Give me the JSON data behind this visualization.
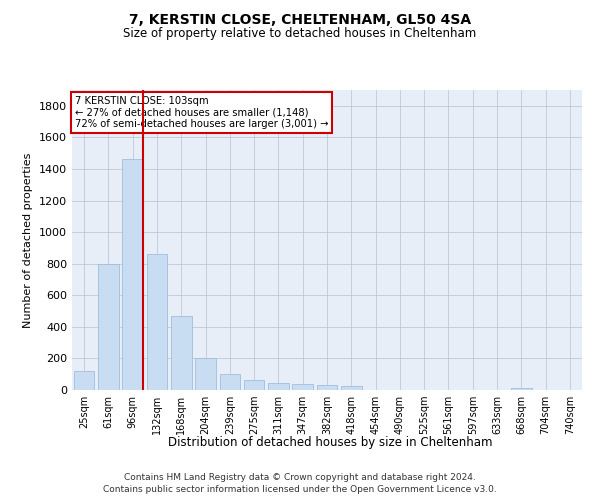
{
  "title": "7, KERSTIN CLOSE, CHELTENHAM, GL50 4SA",
  "subtitle": "Size of property relative to detached houses in Cheltenham",
  "xlabel": "Distribution of detached houses by size in Cheltenham",
  "ylabel": "Number of detached properties",
  "categories": [
    "25sqm",
    "61sqm",
    "96sqm",
    "132sqm",
    "168sqm",
    "204sqm",
    "239sqm",
    "275sqm",
    "311sqm",
    "347sqm",
    "382sqm",
    "418sqm",
    "454sqm",
    "490sqm",
    "525sqm",
    "561sqm",
    "597sqm",
    "633sqm",
    "668sqm",
    "704sqm",
    "740sqm"
  ],
  "values": [
    120,
    795,
    1460,
    860,
    470,
    200,
    100,
    65,
    45,
    35,
    30,
    25,
    0,
    0,
    0,
    0,
    0,
    0,
    15,
    0,
    0
  ],
  "bar_color": "#c9ddf2",
  "bar_edge_color": "#a0bedd",
  "background_color": "#ffffff",
  "plot_bg_color": "#e8eef8",
  "grid_color": "#c0c8d8",
  "vline_x_index": 2,
  "vline_color": "#cc0000",
  "annotation_line1": "7 KERSTIN CLOSE: 103sqm",
  "annotation_line2": "← 27% of detached houses are smaller (1,148)",
  "annotation_line3": "72% of semi-detached houses are larger (3,001) →",
  "ylim": [
    0,
    1900
  ],
  "yticks": [
    0,
    200,
    400,
    600,
    800,
    1000,
    1200,
    1400,
    1600,
    1800
  ],
  "footer_line1": "Contains HM Land Registry data © Crown copyright and database right 2024.",
  "footer_line2": "Contains public sector information licensed under the Open Government Licence v3.0."
}
